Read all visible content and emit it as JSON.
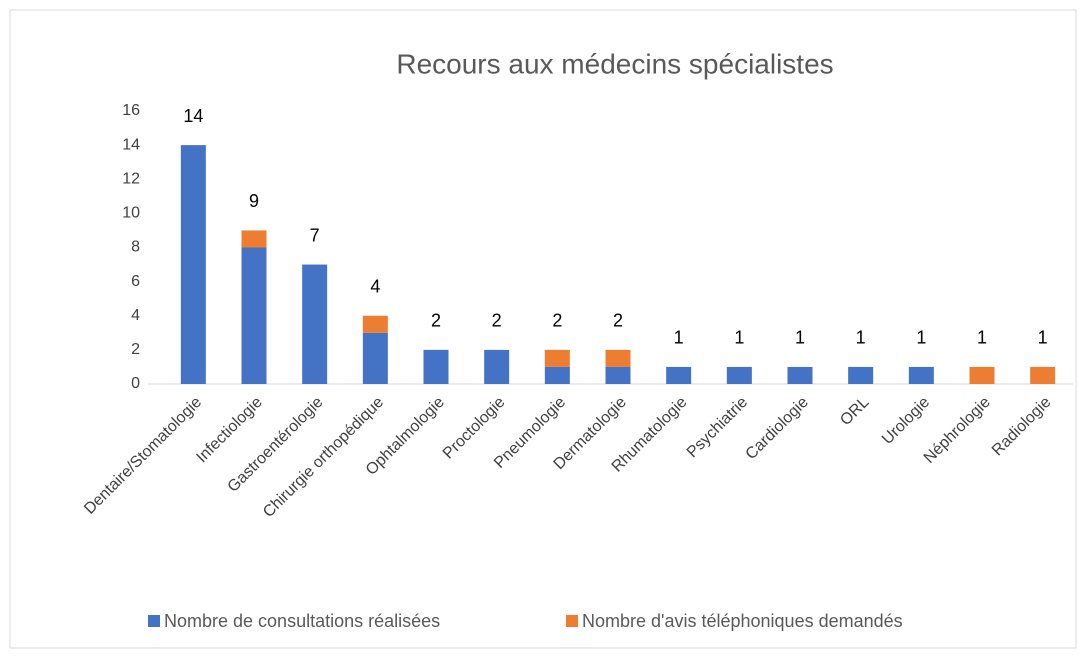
{
  "chart_data": {
    "type": "stacked_bar",
    "title": "Recours aux médecins spécialistes",
    "categories": [
      "Dentaire/Stomatologie",
      "Infectiologie",
      "Gastroentérologie",
      "Chirurgie orthopédique",
      "Ophtalmologie",
      "Proctologie",
      "Pneumologie",
      "Dermatologie",
      "Rhumatologie",
      "Psychiatrie",
      "Cardiologie",
      "ORL",
      "Urologie",
      "Néphrologie",
      "Radiologie"
    ],
    "series": [
      {
        "name": "Nombre de consultations réalisées",
        "color": "#4472c4",
        "values": [
          14,
          8,
          7,
          3,
          2,
          2,
          1,
          1,
          1,
          1,
          1,
          1,
          1,
          0,
          0
        ]
      },
      {
        "name": "Nombre d'avis téléphoniques demandés",
        "color": "#ed7d31",
        "values": [
          0,
          1,
          0,
          1,
          0,
          0,
          1,
          1,
          0,
          0,
          0,
          0,
          0,
          1,
          1
        ]
      }
    ],
    "total_labels": [
      14,
      9,
      7,
      4,
      2,
      2,
      2,
      2,
      1,
      1,
      1,
      1,
      1,
      1,
      1
    ],
    "ylim": [
      0,
      16
    ],
    "yticks": [
      0,
      2,
      4,
      6,
      8,
      10,
      12,
      14,
      16
    ],
    "grid": false,
    "legend": "bottom"
  }
}
